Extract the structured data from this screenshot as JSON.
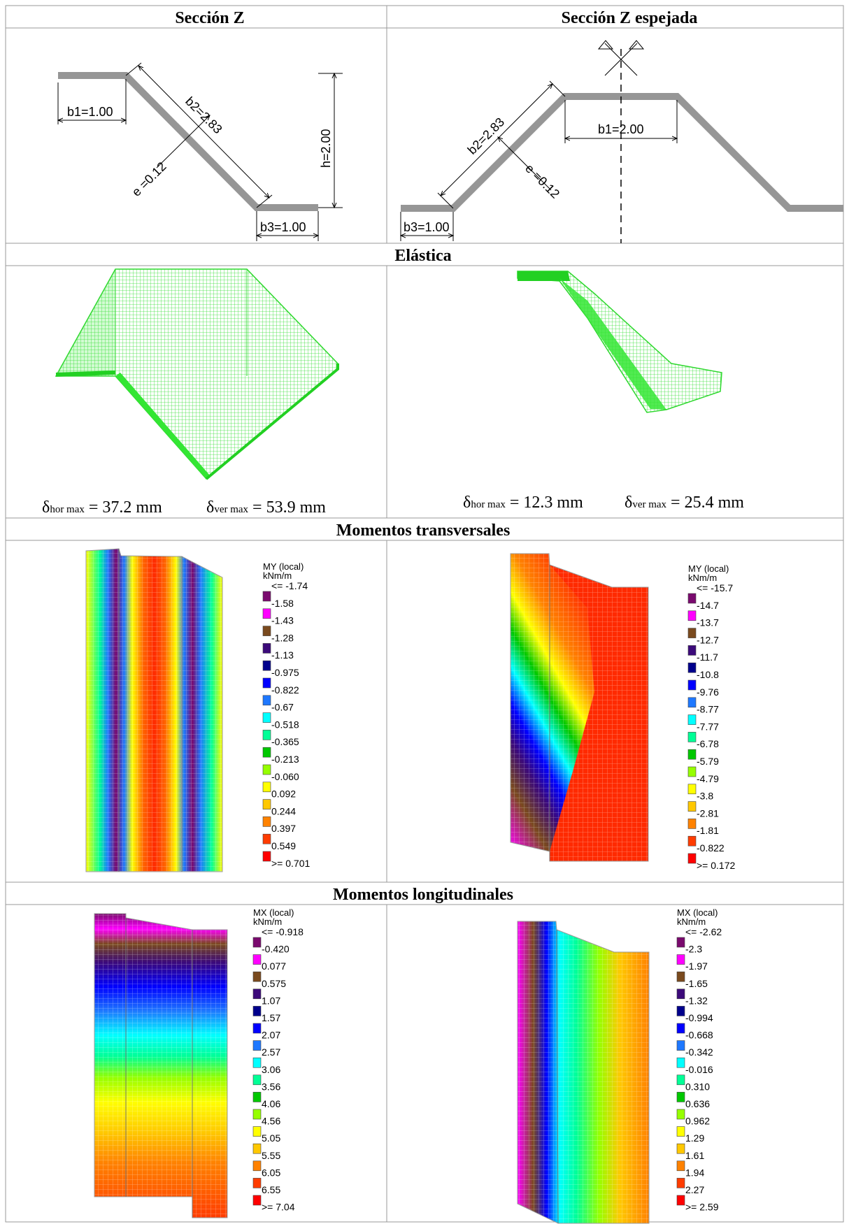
{
  "headers": {
    "left": "Sección Z",
    "right": "Sección Z espejada",
    "elastic": "Elástica",
    "transverse": "Momentos transversales",
    "longitudinal": "Momentos longitudinales"
  },
  "section_z": {
    "b1": "b1=1.00",
    "b2": "b2=2.83",
    "e": "e =0.12",
    "h": "h=2.00",
    "b3": "b3=1.00"
  },
  "section_z_mirror": {
    "b2": "b2=2.83",
    "e": "e =0.12",
    "b1": "b1=2.00",
    "b3": "b3=1.00"
  },
  "deflection": {
    "left": {
      "hor_value": "= 37.2 mm",
      "ver_value": "= 53.9 mm"
    },
    "right": {
      "hor_value": "= 12.3 mm",
      "ver_value": "= 25.4 mm"
    },
    "symbol": "δ",
    "hor_sub": "hor max",
    "ver_sub": "ver max"
  },
  "legend_colors": [
    "#7a0a6e",
    "#ff00ff",
    "#7a4a1e",
    "#3c0a7a",
    "#00008c",
    "#0000ff",
    "#1e78ff",
    "#00ffff",
    "#00ff96",
    "#00c800",
    "#96ff00",
    "#ffff00",
    "#ffc800",
    "#ff8200",
    "#ff3c00",
    "#ff0000"
  ],
  "legends": {
    "my_left": {
      "title": "MY (local)",
      "unit": "kNm/m",
      "labels": [
        "<= -1.74",
        "-1.58",
        "-1.43",
        "-1.28",
        "-1.13",
        "-0.975",
        "-0.822",
        "-0.67",
        "-0.518",
        "-0.365",
        "-0.213",
        "-0.060",
        "0.092",
        "0.244",
        "0.397",
        "0.549",
        ">= 0.701"
      ]
    },
    "my_right": {
      "title": "MY (local)",
      "unit": "kNm/m",
      "labels": [
        "<= -15.7",
        "-14.7",
        "-13.7",
        "-12.7",
        "-11.7",
        "-10.8",
        "-9.76",
        "-8.77",
        "-7.77",
        "-6.78",
        "-5.79",
        "-4.79",
        "-3.8",
        "-2.81",
        "-1.81",
        "-0.822",
        ">= 0.172"
      ]
    },
    "mx_left": {
      "title": "MX (local)",
      "unit": "kNm/m",
      "labels": [
        "<= -0.918",
        "-0.420",
        "0.077",
        "0.575",
        "1.07",
        "1.57",
        "2.07",
        "2.57",
        "3.06",
        "3.56",
        "4.06",
        "4.56",
        "5.05",
        "5.55",
        "6.05",
        "6.55",
        ">= 7.04"
      ]
    },
    "mx_right": {
      "title": "MX (local)",
      "unit": "kNm/m",
      "labels": [
        "<= -2.62",
        "-2.3",
        "-1.97",
        "-1.65",
        "-1.32",
        "-0.994",
        "-0.668",
        "-0.342",
        "-0.016",
        "0.310",
        "0.636",
        "0.962",
        "1.29",
        "1.61",
        "1.94",
        "2.27",
        ">= 2.59"
      ]
    }
  }
}
